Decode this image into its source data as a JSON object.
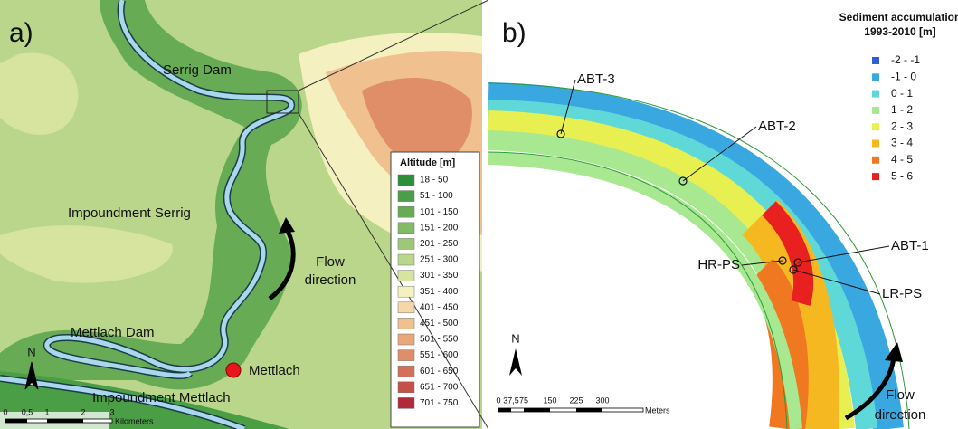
{
  "panel_a": {
    "label": "a)",
    "places": [
      "Serrig Dam",
      "Impoundment Serrig",
      "Mettlach Dam",
      "Mettlach",
      "Impoundment Mettlach"
    ],
    "flow_label": [
      "Flow",
      "direction"
    ],
    "north": "N",
    "scale": {
      "ticks": [
        "0",
        "0,5",
        "1",
        "2",
        "3"
      ],
      "unit": "Kilometers"
    },
    "legend": {
      "title": "Altitude [m]",
      "items": [
        {
          "label": "18 - 50",
          "color": "#2d8f3a"
        },
        {
          "label": "51 - 100",
          "color": "#4a9e45"
        },
        {
          "label": "101 - 150",
          "color": "#67ac55"
        },
        {
          "label": "151 - 200",
          "color": "#82ba65"
        },
        {
          "label": "201 - 250",
          "color": "#9ec877"
        },
        {
          "label": "251 - 300",
          "color": "#bad68a"
        },
        {
          "label": "301 - 350",
          "color": "#d6e4a0"
        },
        {
          "label": "351 - 400",
          "color": "#f4f0bf"
        },
        {
          "label": "401 - 450",
          "color": "#f5d7a8"
        },
        {
          "label": "451 - 500",
          "color": "#f0c08e"
        },
        {
          "label": "501 - 550",
          "color": "#e9a77a"
        },
        {
          "label": "551 - 600",
          "color": "#e08e68"
        },
        {
          "label": "601 - 650",
          "color": "#d4705a"
        },
        {
          "label": "651 - 700",
          "color": "#c6504a"
        },
        {
          "label": "701 - 750",
          "color": "#b0283a"
        }
      ]
    }
  },
  "panel_b": {
    "label": "b)",
    "points": [
      "ABT-3",
      "ABT-2",
      "ABT-1",
      "HR-PS",
      "LR-PS"
    ],
    "flow_label": [
      "Flow",
      "direction"
    ],
    "north": "N",
    "scale": {
      "ticks": [
        "0",
        "37,5",
        "75",
        "150",
        "225",
        "300"
      ],
      "unit": "Meters"
    },
    "legend": {
      "title": [
        "Sediment accumulation",
        "1993-2010 [m]"
      ],
      "items": [
        {
          "label": "-2 - -1",
          "color": "#2e5fd6"
        },
        {
          "label": "-1 - 0",
          "color": "#3aa8e0"
        },
        {
          "label": "0 - 1",
          "color": "#5fd8d8"
        },
        {
          "label": "1 - 2",
          "color": "#a8e890"
        },
        {
          "label": "2 - 3",
          "color": "#e8ef50"
        },
        {
          "label": "3 - 4",
          "color": "#f5b820"
        },
        {
          "label": "4 - 5",
          "color": "#f07820"
        },
        {
          "label": "5 - 6",
          "color": "#e82020"
        }
      ]
    }
  }
}
